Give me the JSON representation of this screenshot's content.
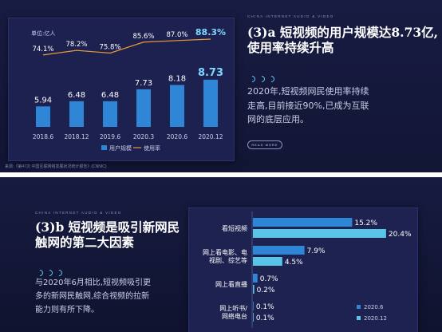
{
  "slide1": {
    "kicker": "CHINA INTERNET AUDIO & VIDEO",
    "heading_line1": "(3)a 短视频的用户规模达8.73亿,",
    "heading_line2": "使用率持续升高",
    "desc_line1": "2020年,短视频网民使用率持续",
    "desc_line2": "走高,目前接近90%,已成为互联",
    "desc_line3": "网的底层应用。",
    "button_label": "READ MORE",
    "footer": "来源:《第47次 中国互联网络发展状况统计报告》(CNNIC)"
  },
  "slide2": {
    "kicker": "CHINA INTERNET AUDIO & VIDEO",
    "heading_line1": "(3)b 短视频是吸引新网民",
    "heading_line2": "触网的第二大因素",
    "desc_line1": "与2020年6月相比,短视频吸引更",
    "desc_line2": "多的新网民触网,综合视频的拉新",
    "desc_line3": "能力则有所下降。"
  },
  "colors": {
    "bar_blue": "#2f86d6",
    "bar_cyan": "#58c4e8",
    "line_orange": "#e89a35",
    "highlight": "#7fd8ff"
  },
  "chart_data": [
    {
      "type": "bar",
      "title": "",
      "unit_label": "单位:亿人",
      "categories": [
        "2018.6",
        "2018.12",
        "2019.6",
        "2020.3",
        "2020.6",
        "2020.12"
      ],
      "series": [
        {
          "name": "用户规模",
          "type": "bar",
          "values": [
            5.94,
            6.48,
            6.48,
            7.73,
            8.18,
            8.73
          ]
        },
        {
          "name": "使用率",
          "type": "line",
          "values": [
            74.1,
            78.2,
            75.8,
            85.6,
            87.0,
            88.3
          ]
        }
      ],
      "bar_labels": [
        "5.94",
        "6.48",
        "6.48",
        "7.73",
        "8.18",
        "8.73"
      ],
      "line_labels": [
        "74.1%",
        "78.2%",
        "75.8%",
        "85.6%",
        "87.0%",
        "88.3%"
      ],
      "highlight_index": 5,
      "grid": false,
      "legend_position": "bottom"
    },
    {
      "type": "bar",
      "orientation": "horizontal",
      "categories": [
        "看短视频",
        "网上看电影、电视剧、综艺等",
        "网上看直播",
        "网上听书/网络电台"
      ],
      "category_lines": [
        [
          "看短视频"
        ],
        [
          "网上看电影、电",
          "视剧、综艺等"
        ],
        [
          "网上看直播"
        ],
        [
          "网上听书/",
          "网络电台"
        ]
      ],
      "series": [
        {
          "name": "2020.6",
          "values": [
            15.2,
            7.9,
            0.7,
            0.1
          ]
        },
        {
          "name": "2020.12",
          "values": [
            20.4,
            4.5,
            0.2,
            0.1
          ]
        }
      ],
      "series_labels": [
        [
          "15.2%",
          "7.9%",
          "0.7%",
          "0.1%"
        ],
        [
          "20.4%",
          "4.5%",
          "0.2%",
          "0.1%"
        ]
      ],
      "xlim": [
        0,
        22
      ],
      "grid": false,
      "legend_position": "bottom-right"
    }
  ]
}
